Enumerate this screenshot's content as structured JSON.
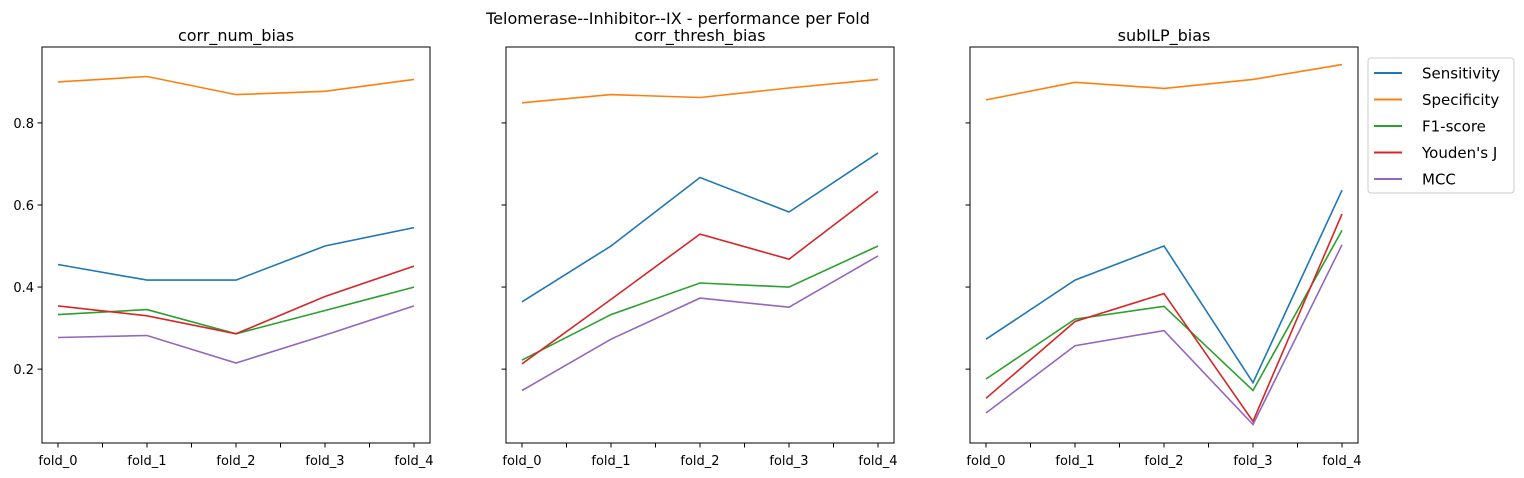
{
  "suptitle": "Telomerase--Inhibitor--IX - performance per Fold",
  "legend": {
    "placement": "outside-right",
    "entries": [
      "Sensitivity",
      "Specificity",
      "F1-score",
      "Youden's J",
      "MCC"
    ]
  },
  "colors": {
    "Sensitivity": "#1f77b4",
    "Specificity": "#ff7f0e",
    "F1-score": "#2ca02c",
    "Youden's J": "#d62728",
    "MCC": "#9467bd"
  },
  "shared_y": {
    "ylim": [
      0.02,
      0.985
    ],
    "yticks": [
      "0.2",
      "0.4",
      "0.6",
      "0.8"
    ],
    "ytick_values": [
      0.2,
      0.4,
      0.6,
      0.8
    ]
  },
  "chart_data": [
    {
      "type": "line",
      "title": "corr_num_bias",
      "xlabel": "",
      "ylabel": "",
      "categories": [
        "fold_0",
        "fold_1",
        "fold_2",
        "fold_3",
        "fold_4"
      ],
      "grid": false,
      "series": [
        {
          "name": "Sensitivity",
          "values": [
            0.455,
            0.417,
            0.417,
            0.5,
            0.545
          ]
        },
        {
          "name": "Specificity",
          "values": [
            0.9,
            0.913,
            0.869,
            0.877,
            0.906
          ]
        },
        {
          "name": "F1-score",
          "values": [
            0.333,
            0.345,
            0.286,
            0.343,
            0.4
          ]
        },
        {
          "name": "Youden's J",
          "values": [
            0.354,
            0.33,
            0.286,
            0.377,
            0.451
          ]
        },
        {
          "name": "MCC",
          "values": [
            0.277,
            0.282,
            0.215,
            0.283,
            0.354
          ]
        }
      ]
    },
    {
      "type": "line",
      "title": "corr_thresh_bias",
      "xlabel": "",
      "ylabel": "",
      "categories": [
        "fold_0",
        "fold_1",
        "fold_2",
        "fold_3",
        "fold_4"
      ],
      "grid": false,
      "series": [
        {
          "name": "Sensitivity",
          "values": [
            0.364,
            0.5,
            0.667,
            0.583,
            0.727
          ]
        },
        {
          "name": "Specificity",
          "values": [
            0.849,
            0.869,
            0.862,
            0.885,
            0.906
          ]
        },
        {
          "name": "F1-score",
          "values": [
            0.222,
            0.333,
            0.41,
            0.4,
            0.5
          ]
        },
        {
          "name": "Youden's J",
          "values": [
            0.213,
            0.37,
            0.529,
            0.468,
            0.633
          ]
        },
        {
          "name": "MCC",
          "values": [
            0.148,
            0.273,
            0.373,
            0.351,
            0.476
          ]
        }
      ]
    },
    {
      "type": "line",
      "title": "subILP_bias",
      "xlabel": "",
      "ylabel": "",
      "categories": [
        "fold_0",
        "fold_1",
        "fold_2",
        "fold_3",
        "fold_4"
      ],
      "grid": false,
      "series": [
        {
          "name": "Sensitivity",
          "values": [
            0.273,
            0.417,
            0.5,
            0.167,
            0.636
          ]
        },
        {
          "name": "Specificity",
          "values": [
            0.856,
            0.899,
            0.884,
            0.906,
            0.942
          ]
        },
        {
          "name": "F1-score",
          "values": [
            0.176,
            0.322,
            0.353,
            0.148,
            0.538
          ]
        },
        {
          "name": "Youden's J",
          "values": [
            0.129,
            0.316,
            0.384,
            0.073,
            0.578
          ]
        },
        {
          "name": "MCC",
          "values": [
            0.093,
            0.257,
            0.294,
            0.065,
            0.503
          ]
        }
      ]
    }
  ]
}
